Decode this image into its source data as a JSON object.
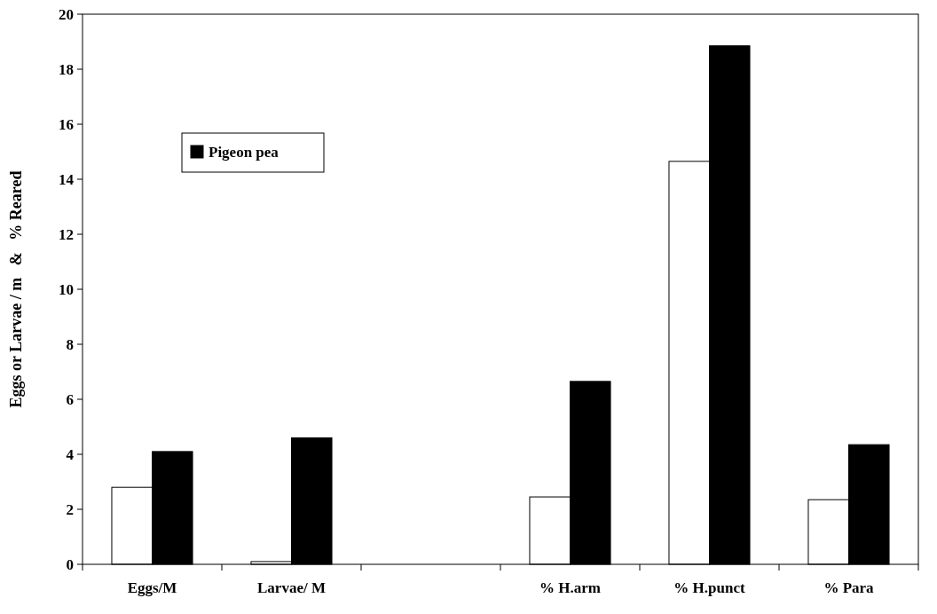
{
  "chart_data": {
    "type": "bar",
    "ylabel": "Eggs or Larvae / m   &   % Reared",
    "categories": [
      "Eggs/M",
      "Larvae/ M",
      null,
      "% H.arm",
      "% H.punct",
      "% Para"
    ],
    "series": [
      {
        "color": "#ffffff",
        "values": [
          2.8,
          0.1,
          null,
          2.45,
          14.65,
          2.35
        ]
      },
      {
        "name": "Pigeon pea",
        "color": "#000000",
        "values": [
          4.1,
          4.6,
          null,
          6.65,
          18.85,
          4.35
        ]
      }
    ],
    "ylim": [
      0,
      20
    ],
    "yticks": [
      0,
      2,
      4,
      6,
      8,
      10,
      12,
      14,
      16,
      18,
      20
    ],
    "legend": "top left",
    "grid": false
  }
}
